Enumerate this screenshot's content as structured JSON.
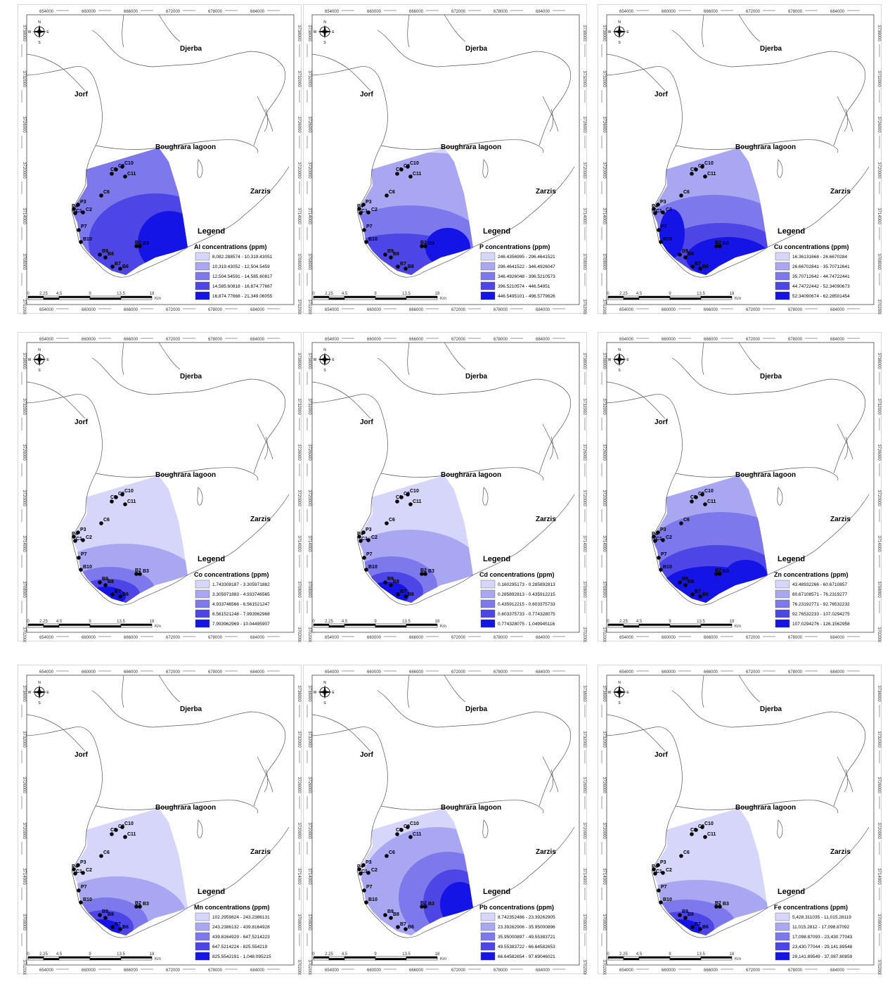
{
  "labels": {
    "north": "N",
    "south": "S",
    "east": "E",
    "west": "W",
    "djerba": "Djerba",
    "jorf": "Jorf",
    "lagoon": "Boughrara lagoon",
    "zarzis": "Zarzis",
    "legend": "Legend",
    "km": "Km"
  },
  "x_ticks": [
    "654000",
    "660000",
    "666000",
    "672000",
    "678000",
    "684000"
  ],
  "y_ticks": [
    "3738000",
    "3732000",
    "3726000",
    "3720000",
    "3714000",
    "3708000",
    "3702000"
  ],
  "scale_ticks": [
    "0",
    "2.25",
    "4.5",
    "9",
    "13.5",
    "18"
  ],
  "points": [
    "C10",
    "C9",
    "C8",
    "C11",
    "C6",
    "P3",
    "P4",
    "C1",
    "C2",
    "P7",
    "B10",
    "B9",
    "B8",
    "B7",
    "B6",
    "B2",
    "B3"
  ],
  "colors": [
    "#d6d6fa",
    "#a9a7f1",
    "#7d78eb",
    "#4e45e7",
    "#1414e6"
  ],
  "maps": [
    {
      "element": "Al",
      "legend_title": "Al concentrations (ppm)",
      "classes": [
        "8,082.288574 - 10,319.43051",
        "10,319.43052 - 12,504.5459",
        "12,504.54591 - 14,585.60817",
        "14,585.60818 - 16,874.77667",
        "16,874.77668 - 21,349.06055"
      ]
    },
    {
      "element": "P",
      "legend_title": "P concentrations (ppm)",
      "classes": [
        "246.4356995 - 296.4641521",
        "296.4641522 - 346.4926047",
        "346.4926048 - 396.5210573",
        "396.5210574 - 446.54951",
        "446.5495101 - 496.5779626"
      ]
    },
    {
      "element": "Cu",
      "legend_title": "Cu concentrations (ppm)",
      "classes": [
        "16.36131668 - 26.6670284",
        "26.66702841 - 35.70712641",
        "35.70712642 - 44.74722441",
        "44.74722442 - 52.34090673",
        "52.34090674 - 62.28501454"
      ]
    },
    {
      "element": "Co",
      "legend_title": "Co concentrations (ppm)",
      "classes": [
        "1.743308187 - 3.305971882",
        "3.305971883 - 4.933746565",
        "4.933746566 - 6.561521247",
        "6.561521248 - 7.993962968",
        "7.993962969 - 10.04495907"
      ]
    },
    {
      "element": "Cd",
      "legend_title": "Cd concentrations (ppm)",
      "classes": [
        "0.160295173 - 0.285892813",
        "0.285892813 - 0.435912215",
        "0.435912215 - 0.603375733",
        "0.603375733 - 0.774328075",
        "0.774328075 - 1.049945116"
      ]
    },
    {
      "element": "Zn",
      "legend_title": "Zn concentrations (ppm)",
      "classes": [
        "43.48932266 - 60.6710857",
        "60.67108571 - 76.2319277",
        "76.23192771 - 92.76532232",
        "92.76532233 - 107.0294275",
        "107.0294276 - 126.1562958"
      ]
    },
    {
      "element": "Mn",
      "legend_title": "Mn concentrations (ppm)",
      "classes": [
        "102.2959824 - 243.2386131",
        "243.2386132 - 439.8164928",
        "439.8164929 - 647.5214223",
        "647.5214224 - 825.554219",
        "825.5542191 - 1,048.095215"
      ]
    },
    {
      "element": "Pb",
      "legend_title": "Pb concentrations (ppm)",
      "classes": [
        "8.742352486 - 23.39262905",
        "23.39262906 - 35.95000896",
        "35.95000897 - 49.55383721",
        "49.55383722 - 66.64582653",
        "66.64582654 - 97.69046021"
      ]
    },
    {
      "element": "Fe",
      "legend_title": "Fe concentrations (ppm)",
      "classes": [
        "5,428.311035 - 11,015.28119",
        "11,015.2812 - 17,098.87092",
        "17,098.87093 - 23,430.77043",
        "23,430.77044 - 29,141.89548",
        "29,141.89549 - 37,087.80859"
      ]
    }
  ]
}
